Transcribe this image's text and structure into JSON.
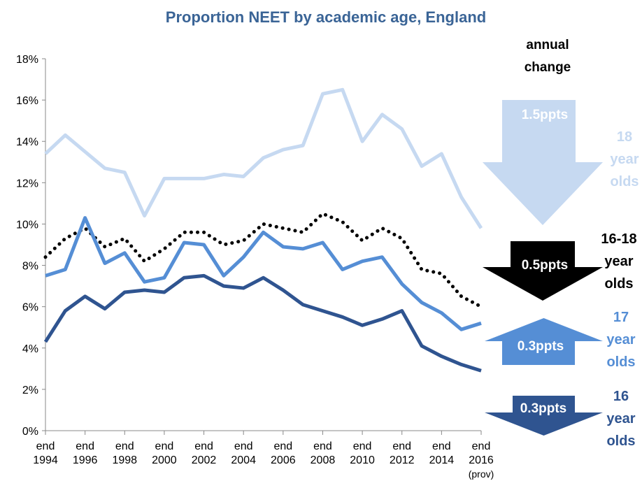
{
  "chart_data": {
    "type": "line",
    "title": "Proportion NEET by academic age, England",
    "x": [
      1994,
      1995,
      1996,
      1997,
      1998,
      1999,
      2000,
      2001,
      2002,
      2003,
      2004,
      2005,
      2006,
      2007,
      2008,
      2009,
      2010,
      2011,
      2012,
      2013,
      2014,
      2015,
      2016
    ],
    "xlim": [
      1994,
      2016
    ],
    "xticks": [
      {
        "value": 1994,
        "label": "end 1994"
      },
      {
        "value": 1996,
        "label": "end 1996"
      },
      {
        "value": 1998,
        "label": "end 1998"
      },
      {
        "value": 2000,
        "label": "end 2000"
      },
      {
        "value": 2002,
        "label": "end 2002"
      },
      {
        "value": 2004,
        "label": "end 2004"
      },
      {
        "value": 2006,
        "label": "end 2006"
      },
      {
        "value": 2008,
        "label": "end 2008"
      },
      {
        "value": 2010,
        "label": "end 2010"
      },
      {
        "value": 2012,
        "label": "end 2012"
      },
      {
        "value": 2014,
        "label": "end 2014"
      },
      {
        "value": 2016,
        "label": "end 2016 (prov)"
      }
    ],
    "ylim": [
      0,
      18
    ],
    "yticks": [
      {
        "value": 0,
        "label": "0%"
      },
      {
        "value": 2,
        "label": "2%"
      },
      {
        "value": 4,
        "label": "4%"
      },
      {
        "value": 6,
        "label": "6%"
      },
      {
        "value": 8,
        "label": "8%"
      },
      {
        "value": 10,
        "label": "10%"
      },
      {
        "value": 12,
        "label": "12%"
      },
      {
        "value": 14,
        "label": "14%"
      },
      {
        "value": 16,
        "label": "16%"
      },
      {
        "value": 18,
        "label": "18%"
      }
    ],
    "grid": false,
    "side_title": "annual change",
    "series": [
      {
        "name": "18 year olds",
        "color": "#c6d9f1",
        "dashed": false,
        "values": [
          13.4,
          14.3,
          13.5,
          12.7,
          12.5,
          10.4,
          12.2,
          12.2,
          12.2,
          12.4,
          12.3,
          13.2,
          13.6,
          13.8,
          16.3,
          16.5,
          14.0,
          15.3,
          14.6,
          12.8,
          13.4,
          11.3,
          9.8
        ],
        "change_label": "1.5ppts",
        "change_direction": "down"
      },
      {
        "name": "16-18 year olds",
        "color": "#000000",
        "dashed": true,
        "values": [
          8.4,
          9.3,
          9.8,
          8.9,
          9.3,
          8.2,
          8.8,
          9.6,
          9.6,
          9.0,
          9.2,
          10.0,
          9.8,
          9.6,
          10.5,
          10.1,
          9.2,
          9.8,
          9.3,
          7.8,
          7.6,
          6.5,
          6.0
        ],
        "change_label": "0.5ppts",
        "change_direction": "down"
      },
      {
        "name": "17 year olds",
        "color": "#558ed5",
        "dashed": false,
        "values": [
          7.5,
          7.8,
          10.3,
          8.1,
          8.6,
          7.2,
          7.4,
          9.1,
          9.0,
          7.5,
          8.4,
          9.6,
          8.9,
          8.8,
          9.1,
          7.8,
          8.2,
          8.4,
          7.1,
          6.2,
          5.7,
          4.9,
          5.2
        ],
        "change_label": "0.3ppts",
        "change_direction": "up"
      },
      {
        "name": "16 year olds",
        "color": "#2f5490",
        "dashed": false,
        "values": [
          4.3,
          5.8,
          6.5,
          5.9,
          6.7,
          6.8,
          6.7,
          7.4,
          7.5,
          7.0,
          6.9,
          7.4,
          6.8,
          6.1,
          5.8,
          5.5,
          5.1,
          5.4,
          5.8,
          4.1,
          3.6,
          3.2,
          2.9
        ],
        "change_label": "0.3ppts",
        "change_direction": "down"
      }
    ]
  }
}
